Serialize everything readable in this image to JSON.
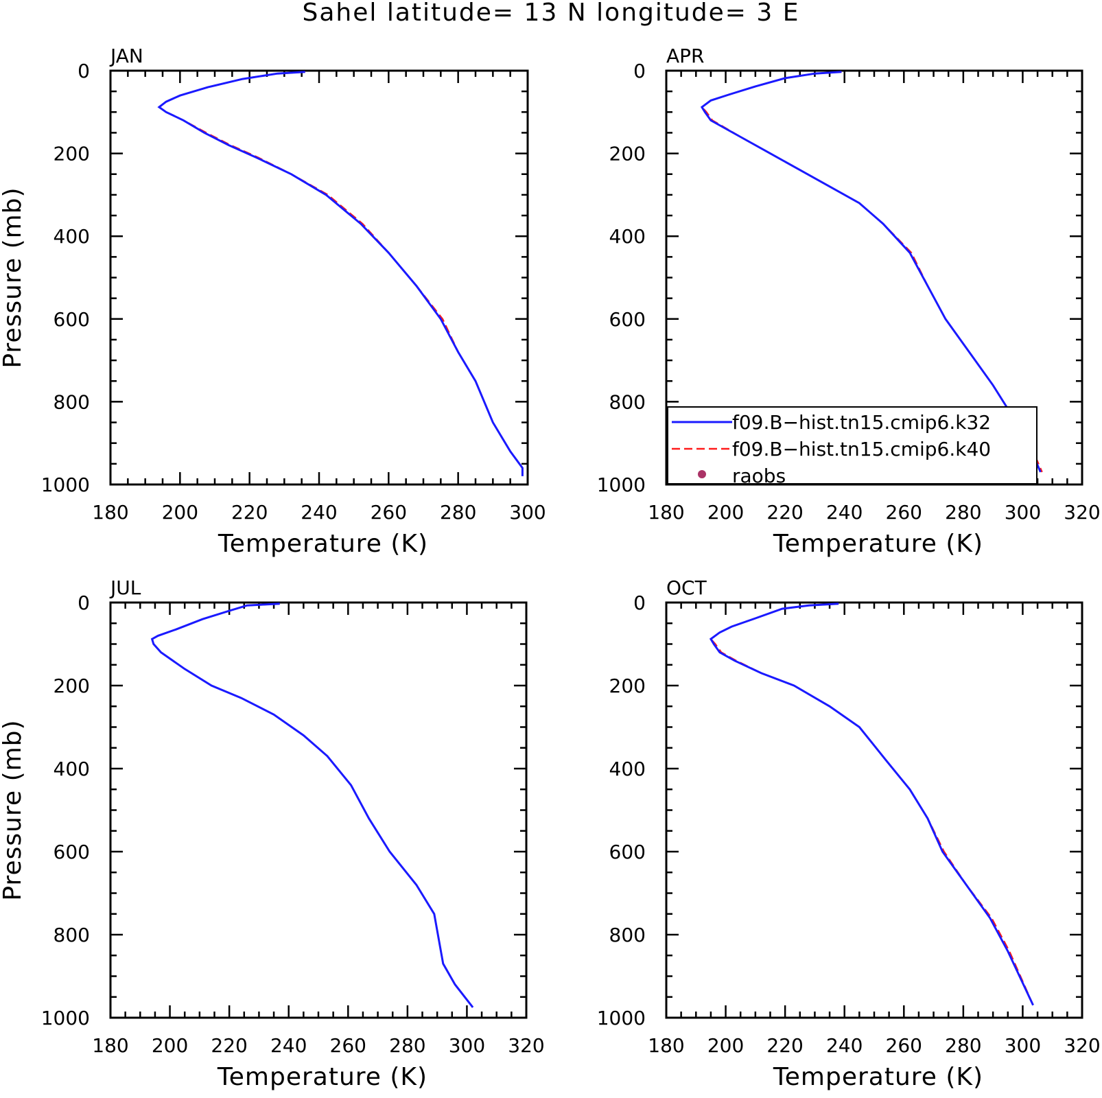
{
  "figure": {
    "title": "Sahel  latitude= 13 N longitude= 3 E"
  },
  "colors": {
    "k32": "#1a1aff",
    "k40": "#ff1a1a",
    "raobs": "#aa3366"
  },
  "legend": {
    "panel": 1,
    "items": [
      {
        "label": "f09.B−hist.tn15.cmip6.k32",
        "style": "solid",
        "color": "#1a1aff"
      },
      {
        "label": "f09.B−hist.tn15.cmip6.k40",
        "style": "dashed",
        "color": "#ff1a1a"
      },
      {
        "label": "raobs",
        "style": "dot",
        "color": "#aa3366"
      }
    ]
  },
  "chart_data": [
    {
      "type": "line",
      "title": "JAN",
      "xlabel": "Temperature (K)",
      "ylabel": "Pressure (mb)",
      "xlim": [
        180,
        300
      ],
      "xticks": [
        180,
        200,
        220,
        240,
        260,
        280,
        300
      ],
      "ylim": [
        0,
        1000
      ],
      "yticks": [
        0,
        200,
        400,
        600,
        800,
        1000
      ],
      "y_inverted": true,
      "grid": false,
      "series": [
        {
          "name": "f09.B−hist.tn15.cmip6.k32",
          "style": "solid",
          "color": "#1a1aff",
          "x": [
            236,
            228,
            218,
            208,
            200,
            196,
            194,
            196,
            201,
            207,
            214,
            222,
            232,
            242,
            252,
            260,
            268,
            275,
            280,
            285,
            290,
            295,
            298.5,
            298.5
          ],
          "y": [
            3,
            7,
            20,
            40,
            60,
            75,
            88,
            100,
            120,
            150,
            180,
            210,
            250,
            300,
            370,
            440,
            520,
            600,
            680,
            750,
            850,
            920,
            960,
            980
          ]
        },
        {
          "name": "f09.B−hist.tn15.cmip6.k40",
          "style": "dashed",
          "color": "#ff1a1a",
          "x": [
            236,
            228,
            218,
            208,
            200,
            196,
            194,
            196,
            201,
            207.5,
            214.5,
            222.5,
            232,
            242.5,
            252.5,
            260,
            268,
            275.5,
            280,
            285,
            290,
            295,
            298.5,
            298.5
          ],
          "y": [
            3,
            7,
            20,
            40,
            60,
            75,
            88,
            100,
            120,
            150,
            180,
            210,
            250,
            300,
            370,
            440,
            520,
            600,
            680,
            750,
            850,
            920,
            960,
            980
          ]
        }
      ]
    },
    {
      "type": "line",
      "title": "APR",
      "xlabel": "Temperature (K)",
      "ylabel": "",
      "xlim": [
        180,
        320
      ],
      "xticks": [
        180,
        200,
        220,
        240,
        260,
        280,
        300,
        320
      ],
      "ylim": [
        0,
        1000
      ],
      "yticks": [
        0,
        200,
        400,
        600,
        800,
        1000
      ],
      "y_inverted": true,
      "grid": false,
      "series": [
        {
          "name": "f09.B−hist.tn15.cmip6.k32",
          "style": "solid",
          "color": "#1a1aff",
          "x": [
            239,
            230,
            220,
            210,
            201,
            195,
            192,
            193,
            195,
            205,
            215,
            225,
            235,
            245,
            253,
            262,
            268,
            274,
            282,
            290,
            297,
            303,
            306
          ],
          "y": [
            3,
            7,
            18,
            38,
            58,
            72,
            88,
            100,
            120,
            160,
            200,
            240,
            280,
            320,
            370,
            440,
            520,
            600,
            680,
            760,
            840,
            920,
            970
          ]
        },
        {
          "name": "f09.B−hist.tn15.cmip6.k40",
          "style": "dashed",
          "color": "#ff1a1a",
          "x": [
            239,
            230,
            220,
            210,
            201,
            195,
            192,
            193.5,
            195.5,
            205,
            215,
            225,
            235,
            245,
            253,
            262.5,
            268,
            274,
            282,
            290,
            297,
            303.5,
            306.5
          ],
          "y": [
            3,
            7,
            18,
            38,
            58,
            72,
            88,
            100,
            120,
            160,
            200,
            240,
            280,
            320,
            370,
            440,
            520,
            600,
            680,
            760,
            840,
            920,
            970
          ]
        }
      ]
    },
    {
      "type": "line",
      "title": "JUL",
      "xlabel": "Temperature (K)",
      "ylabel": "Pressure (mb)",
      "xlim": [
        180,
        320
      ],
      "xticks": [
        180,
        200,
        220,
        240,
        260,
        280,
        300,
        320
      ],
      "ylim": [
        0,
        1000
      ],
      "yticks": [
        0,
        200,
        400,
        600,
        800,
        1000
      ],
      "y_inverted": true,
      "grid": false,
      "series": [
        {
          "name": "f09.B−hist.tn15.cmip6.k32",
          "style": "solid",
          "color": "#1a1aff",
          "x": [
            237,
            226,
            220,
            211,
            202,
            196,
            194,
            194.5,
            197,
            205,
            214,
            224,
            235,
            245,
            253,
            261,
            267,
            274,
            283,
            289,
            292,
            296,
            302
          ],
          "y": [
            3,
            7,
            20,
            40,
            65,
            80,
            88,
            100,
            120,
            160,
            200,
            230,
            270,
            320,
            370,
            440,
            520,
            600,
            680,
            750,
            870,
            920,
            975
          ]
        },
        {
          "name": "f09.B−hist.tn15.cmip6.k40",
          "style": "dashed",
          "color": "#ff1a1a",
          "x": [
            237,
            226,
            220,
            211,
            202,
            196,
            194,
            194.5,
            197,
            205,
            214,
            224,
            235,
            245,
            253,
            261,
            267,
            274,
            283,
            289,
            292,
            296,
            302
          ],
          "y": [
            3,
            7,
            20,
            40,
            65,
            80,
            88,
            100,
            120,
            160,
            200,
            230,
            270,
            320,
            370,
            440,
            520,
            600,
            680,
            750,
            870,
            920,
            975
          ]
        }
      ]
    },
    {
      "type": "line",
      "title": "OCT",
      "xlabel": "Temperature (K)",
      "ylabel": "",
      "xlim": [
        180,
        320
      ],
      "xticks": [
        180,
        200,
        220,
        240,
        260,
        280,
        300,
        320
      ],
      "ylim": [
        0,
        1000
      ],
      "yticks": [
        0,
        200,
        400,
        600,
        800,
        1000
      ],
      "y_inverted": true,
      "grid": false,
      "series": [
        {
          "name": "f09.B−hist.tn15.cmip6.k32",
          "style": "solid",
          "color": "#1a1aff",
          "x": [
            238,
            228,
            219,
            210,
            202,
            198,
            195,
            196,
            198,
            203,
            212,
            223,
            235,
            245,
            254,
            262,
            268,
            273,
            281,
            289,
            295,
            303.5
          ],
          "y": [
            3,
            7,
            15,
            38,
            58,
            72,
            88,
            100,
            120,
            140,
            170,
            200,
            250,
            300,
            380,
            450,
            520,
            600,
            680,
            760,
            840,
            970
          ]
        },
        {
          "name": "f09.B−hist.tn15.cmip6.k40",
          "style": "dashed",
          "color": "#ff1a1a",
          "x": [
            238,
            228,
            219,
            210,
            202,
            198,
            195,
            196.5,
            198.5,
            203.5,
            212,
            223,
            235,
            245,
            254,
            262,
            268,
            273.5,
            281,
            289.5,
            295.5,
            303.5
          ],
          "y": [
            3,
            7,
            15,
            38,
            58,
            72,
            88,
            100,
            120,
            140,
            170,
            200,
            250,
            300,
            380,
            450,
            520,
            600,
            680,
            760,
            840,
            970
          ]
        }
      ]
    }
  ]
}
